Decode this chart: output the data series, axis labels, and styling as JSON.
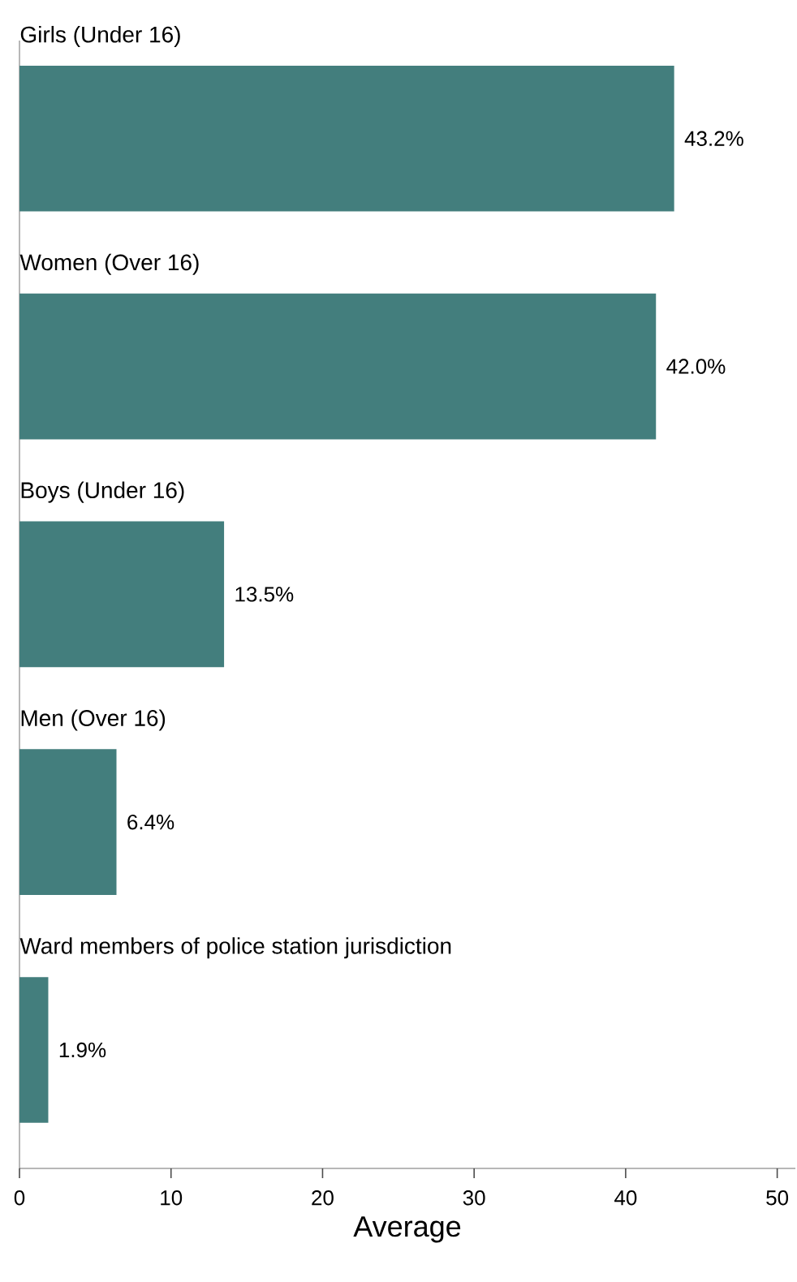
{
  "chart_data": {
    "type": "bar",
    "orientation": "horizontal",
    "xlabel": "Average",
    "categories": [
      "Girls (Under 16)",
      "Women (Over 16)",
      "Boys (Under 16)",
      "Men (Over 16)",
      "Ward members of police station jurisdiction"
    ],
    "values": [
      43.2,
      42.0,
      13.5,
      6.4,
      1.9
    ],
    "value_labels": [
      "43.2%",
      "42.0%",
      "13.5%",
      "6.4%",
      "1.9%"
    ],
    "color": "#437e7d",
    "xlim": [
      0,
      51.2
    ],
    "xticks": [
      0,
      10,
      20,
      30,
      40,
      50
    ]
  }
}
